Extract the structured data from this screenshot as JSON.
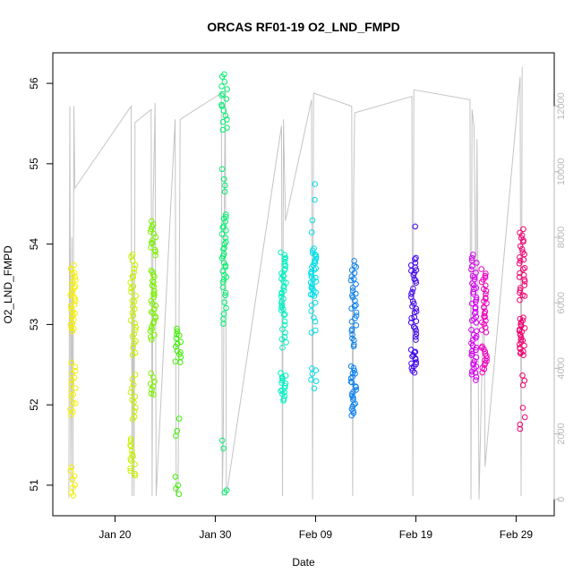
{
  "chart_data": {
    "type": "scatter",
    "title": "ORCAS RF01-19 O2_LND_FMPD",
    "xlabel": "Date",
    "ylabel": "O2_LND_FMPD",
    "x_ticks": [
      {
        "day": 20,
        "label": "Jan 20"
      },
      {
        "day": 30,
        "label": "Jan 30"
      },
      {
        "day": 40,
        "label": "Feb 09"
      },
      {
        "day": 50,
        "label": "Feb 19"
      },
      {
        "day": 60,
        "label": "Feb 29"
      }
    ],
    "x_range": [
      13.8,
      63.8
    ],
    "y_ticks": [
      51,
      52,
      53,
      54,
      55,
      56
    ],
    "y_range": [
      50.62,
      56.38
    ],
    "y2_ticks": [
      0,
      2000,
      4000,
      6000,
      8000,
      10000,
      12000
    ],
    "y2_range": [
      -500,
      13630
    ],
    "grid": false,
    "flights": [
      {
        "day": 15.8,
        "color": "#f6f000",
        "clusters": [
          [
            50.85,
            51.25,
            8
          ],
          [
            51.85,
            52.55,
            16
          ],
          [
            52.9,
            53.75,
            30
          ]
        ]
      },
      {
        "day": 21.8,
        "color": "#c8f000",
        "clusters": [
          [
            51.1,
            51.6,
            14
          ],
          [
            51.8,
            52.4,
            12
          ],
          [
            52.6,
            53.9,
            30
          ]
        ]
      },
      {
        "day": 23.8,
        "color": "#7cf000",
        "clusters": [
          [
            52.1,
            52.4,
            8
          ],
          [
            52.8,
            53.7,
            28
          ],
          [
            53.85,
            54.3,
            14
          ]
        ]
      },
      {
        "day": 26.3,
        "color": "#3cf000",
        "clusters": [
          [
            50.85,
            51.15,
            4
          ],
          [
            51.55,
            51.9,
            3
          ],
          [
            52.5,
            52.98,
            14
          ]
        ]
      },
      {
        "day": 30.9,
        "color": "#00f070",
        "clusters": [
          [
            50.9,
            50.95,
            2
          ],
          [
            51.45,
            51.65,
            2
          ],
          [
            53.0,
            53.5,
            8
          ],
          [
            53.5,
            54.4,
            24
          ],
          [
            54.6,
            55.0,
            4
          ],
          [
            55.4,
            56.15,
            16
          ]
        ]
      },
      {
        "day": 36.8,
        "color": "#00f0c0",
        "clusters": [
          [
            52.05,
            52.4,
            16
          ],
          [
            52.7,
            53.05,
            8
          ],
          [
            53.1,
            53.9,
            30
          ]
        ]
      },
      {
        "day": 39.8,
        "color": "#00e0e8",
        "clusters": [
          [
            52.2,
            52.5,
            6
          ],
          [
            52.85,
            53.4,
            8
          ],
          [
            53.35,
            53.95,
            30
          ],
          [
            54.1,
            54.8,
            4
          ]
        ]
      },
      {
        "day": 43.8,
        "color": "#0a80f0",
        "clusters": [
          [
            51.85,
            52.5,
            24
          ],
          [
            52.7,
            53.1,
            10
          ],
          [
            53.1,
            53.8,
            20
          ]
        ]
      },
      {
        "day": 49.8,
        "color": "#4000f0",
        "clusters": [
          [
            52.4,
            52.7,
            14
          ],
          [
            52.8,
            53.45,
            20
          ],
          [
            53.5,
            53.85,
            12
          ],
          [
            54.22,
            54.25,
            1
          ]
        ]
      },
      {
        "day": 55.8,
        "color": "#d400f0",
        "clusters": [
          [
            52.3,
            52.95,
            24
          ],
          [
            53.0,
            53.6,
            20
          ],
          [
            53.6,
            53.9,
            8
          ]
        ]
      },
      {
        "day": 56.8,
        "color": "#f000c0",
        "clusters": [
          [
            52.4,
            52.75,
            14
          ],
          [
            52.9,
            53.3,
            14
          ],
          [
            53.3,
            53.7,
            12
          ]
        ]
      },
      {
        "day": 60.6,
        "color": "#f00070",
        "clusters": [
          [
            51.65,
            52.0,
            4
          ],
          [
            52.2,
            52.4,
            3
          ],
          [
            52.6,
            53.1,
            24
          ],
          [
            53.3,
            53.6,
            10
          ],
          [
            53.6,
            54.2,
            18
          ]
        ]
      }
    ],
    "altitude_trace": [
      [
        15.4,
        50
      ],
      [
        15.5,
        12000
      ],
      [
        15.6,
        500
      ],
      [
        15.7,
        8000
      ],
      [
        15.8,
        200
      ],
      [
        15.9,
        12000
      ],
      [
        16.0,
        9500
      ],
      [
        21.6,
        12000
      ],
      [
        21.7,
        100
      ],
      [
        21.8,
        7000
      ],
      [
        21.9,
        100
      ],
      [
        22.0,
        11500
      ],
      [
        23.6,
        11900
      ],
      [
        23.7,
        100
      ],
      [
        23.8,
        9000
      ],
      [
        23.9,
        10500
      ],
      [
        24.0,
        12100
      ],
      [
        24.1,
        100
      ],
      [
        26.0,
        11600
      ],
      [
        26.1,
        100
      ],
      [
        26.3,
        500
      ],
      [
        26.5,
        11600
      ],
      [
        30.6,
        12400
      ],
      [
        30.7,
        100
      ],
      [
        30.8,
        2000
      ],
      [
        30.9,
        9000
      ],
      [
        31.0,
        12600
      ],
      [
        31.1,
        100
      ],
      [
        36.6,
        11400
      ],
      [
        36.7,
        100
      ],
      [
        36.8,
        11600
      ],
      [
        37.0,
        8500
      ],
      [
        39.6,
        12200
      ],
      [
        39.7,
        0
      ],
      [
        39.8,
        12400
      ],
      [
        43.6,
        12000
      ],
      [
        43.7,
        100
      ],
      [
        43.8,
        9500
      ],
      [
        43.9,
        11800
      ],
      [
        49.6,
        12300
      ],
      [
        49.7,
        100
      ],
      [
        49.8,
        12500
      ],
      [
        55.4,
        12200
      ],
      [
        55.5,
        0
      ],
      [
        55.6,
        11900
      ],
      [
        55.8,
        11400
      ],
      [
        56.0,
        6000
      ],
      [
        56.1,
        11000
      ],
      [
        56.3,
        0
      ],
      [
        56.8,
        6800
      ],
      [
        56.9,
        1000
      ],
      [
        60.4,
        12900
      ],
      [
        60.5,
        100
      ],
      [
        60.6,
        13200
      ]
    ]
  }
}
